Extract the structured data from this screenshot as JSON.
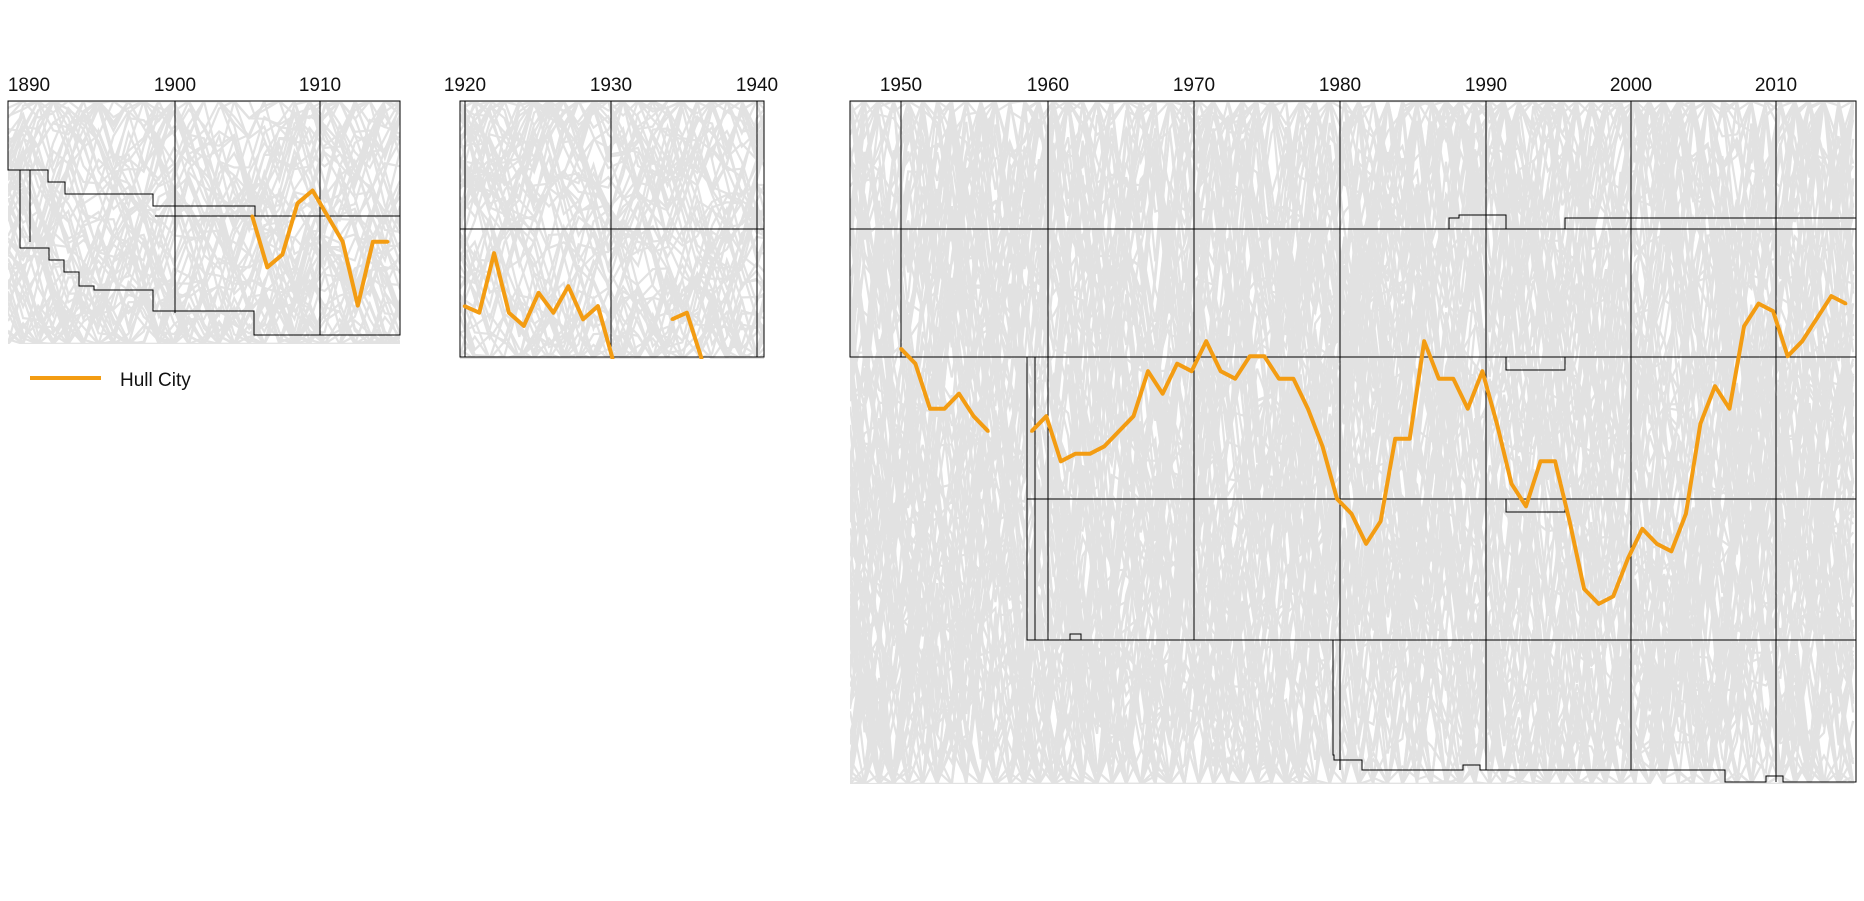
{
  "chart_data": {
    "type": "line",
    "title": "",
    "xlabel": "",
    "ylabel": "",
    "grid": true,
    "legend_position": "left, below first panel",
    "colors": {
      "highlight": "#f39c12",
      "background_lines": "#e2e2e2",
      "frame": "#000000"
    },
    "legend": [
      {
        "label": "Hull City",
        "color": "#f39c12"
      }
    ],
    "panels": [
      {
        "name": "1890-1915",
        "xlim": [
          1889.8,
          1915.8
        ],
        "ticks": [
          "1890",
          "1900",
          "1910"
        ],
        "series": [
          {
            "name": "Hull City",
            "segments": [
              [
                [
                  1906,
                  10
                ],
                [
                  1907,
                  14
                ],
                [
                  1908,
                  13
                ],
                [
                  1909,
                  9
                ],
                [
                  1910,
                  8
                ],
                [
                  1911,
                  10
                ],
                [
                  1912,
                  12
                ],
                [
                  1913,
                  17
                ],
                [
                  1914,
                  12
                ],
                [
                  1915,
                  12
                ]
              ]
            ]
          }
        ]
      },
      {
        "name": "1920-1939",
        "xlim": [
          1919.7,
          1940.2
        ],
        "ticks": [
          "1920",
          "1930",
          "1940"
        ],
        "series": [
          {
            "name": "Hull City",
            "segments": [
              [
                [
                  1920,
                  32
                ],
                [
                  1921,
                  33
                ],
                [
                  1922,
                  24
                ],
                [
                  1923,
                  33
                ],
                [
                  1924,
                  35
                ],
                [
                  1925,
                  30
                ],
                [
                  1926,
                  33
                ],
                [
                  1927,
                  29
                ],
                [
                  1928,
                  34
                ],
                [
                  1929,
                  32
                ],
                [
                  1930,
                  40
                ]
              ],
              [
                [
                  1934,
                  34
                ],
                [
                  1935,
                  33
                ],
                [
                  1936,
                  40
                ]
              ]
            ]
          }
        ]
      },
      {
        "name": "1946-2015",
        "xlim": [
          1946.5,
          2015.7
        ],
        "ticks": [
          "1950",
          "1960",
          "1970",
          "1980",
          "1990",
          "2000",
          "2010"
        ],
        "series": [
          {
            "name": "Hull City",
            "segments": [
              [
                [
                  1950,
                  34
                ],
                [
                  1951,
                  36
                ],
                [
                  1952,
                  42
                ],
                [
                  1953,
                  42
                ],
                [
                  1954,
                  40
                ],
                [
                  1955,
                  43
                ],
                [
                  1956,
                  45
                ]
              ],
              [
                [
                  1959,
                  45
                ],
                [
                  1960,
                  43
                ],
                [
                  1961,
                  49
                ],
                [
                  1962,
                  48
                ],
                [
                  1963,
                  48
                ],
                [
                  1964,
                  47
                ],
                [
                  1965,
                  45
                ],
                [
                  1966,
                  43
                ],
                [
                  1967,
                  37
                ],
                [
                  1968,
                  40
                ],
                [
                  1969,
                  36
                ],
                [
                  1970,
                  37
                ],
                [
                  1971,
                  33
                ],
                [
                  1972,
                  37
                ],
                [
                  1973,
                  38
                ],
                [
                  1974,
                  35
                ],
                [
                  1975,
                  35
                ],
                [
                  1976,
                  38
                ],
                [
                  1977,
                  38
                ],
                [
                  1978,
                  42
                ],
                [
                  1979,
                  47
                ],
                [
                  1980,
                  54
                ],
                [
                  1981,
                  56
                ],
                [
                  1982,
                  60
                ],
                [
                  1983,
                  57
                ],
                [
                  1984,
                  46
                ],
                [
                  1985,
                  46
                ],
                [
                  1986,
                  33
                ],
                [
                  1987,
                  38
                ],
                [
                  1988,
                  38
                ],
                [
                  1989,
                  42
                ],
                [
                  1990,
                  37
                ],
                [
                  1991,
                  44
                ],
                [
                  1992,
                  52
                ],
                [
                  1993,
                  55
                ],
                [
                  1994,
                  49
                ],
                [
                  1995,
                  49
                ],
                [
                  1996,
                  57
                ],
                [
                  1997,
                  66
                ],
                [
                  1998,
                  68
                ],
                [
                  1999,
                  67
                ],
                [
                  2000,
                  62
                ],
                [
                  2001,
                  58
                ],
                [
                  2002,
                  60
                ],
                [
                  2003,
                  61
                ],
                [
                  2004,
                  56
                ],
                [
                  2005,
                  44
                ],
                [
                  2006,
                  39
                ],
                [
                  2007,
                  42
                ],
                [
                  2008,
                  31
                ],
                [
                  2009,
                  28
                ],
                [
                  2010,
                  29
                ],
                [
                  2011,
                  35
                ],
                [
                  2012,
                  33
                ],
                [
                  2013,
                  30
                ],
                [
                  2014,
                  27
                ],
                [
                  2015,
                  28
                ]
              ]
            ]
          }
        ]
      }
    ]
  }
}
